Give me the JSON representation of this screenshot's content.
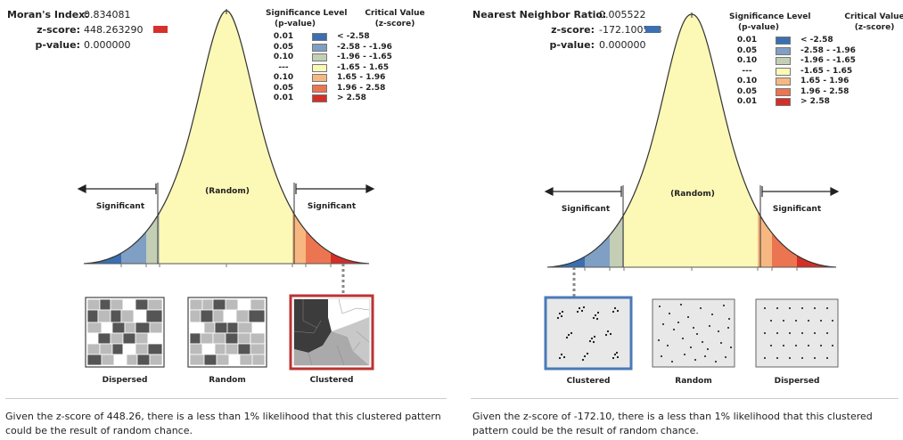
{
  "left": {
    "stats": {
      "index_label": "Moran's Index:",
      "index_value": "0.834081",
      "z_label": "z-score:",
      "z_value": "448.263290",
      "p_label": "p-value:",
      "p_value": "0.000000",
      "z_marker_color": "#d6312b"
    },
    "curve": {
      "random_label": "(Random)",
      "sig_left_label": "Significant",
      "sig_right_label": "Significant"
    },
    "thumbnails": [
      {
        "label": "Dispersed",
        "selected": false
      },
      {
        "label": "Random",
        "selected": false
      },
      {
        "label": "Clustered",
        "selected": true
      }
    ],
    "message": "Given the z-score of 448.26, there is a less than 1% likelihood that this clustered pattern could be the result of random chance."
  },
  "right": {
    "stats": {
      "index_label": "Nearest Neighbor Ratio:",
      "index_value": "0.005522",
      "z_label": "z-score:",
      "z_value": "-172.100518",
      "p_label": "p-value:",
      "p_value": "0.000000",
      "z_marker_color": "#3d6fb2"
    },
    "curve": {
      "random_label": "(Random)",
      "sig_left_label": "Significant",
      "sig_right_label": "Significant"
    },
    "thumbnails": [
      {
        "label": "Clustered",
        "selected": true
      },
      {
        "label": "Random",
        "selected": false
      },
      {
        "label": "Dispersed",
        "selected": false
      }
    ],
    "message": "Given the z-score of -172.10, there is a less than 1% likelihood that this clustered pattern could be the result of random chance."
  },
  "legend": {
    "sig_header_line1": "Significance Level",
    "sig_header_line2": "(p-value)",
    "crit_header_line1": "Critical Value",
    "crit_header_line2": "(z-score)",
    "rows": [
      {
        "level": "0.01",
        "critical": "< -2.58",
        "color": "#3a6fb1"
      },
      {
        "level": "0.05",
        "critical": "-2.58 - -1.96",
        "color": "#7f9fc4"
      },
      {
        "level": "0.10",
        "critical": "-1.96 - -1.65",
        "color": "#c4ceb5"
      },
      {
        "level": "---",
        "critical": "-1.65 - 1.65",
        "color": "#fcf8b6"
      },
      {
        "level": "0.10",
        "critical": "1.65 - 1.96",
        "color": "#f6b880"
      },
      {
        "level": "0.05",
        "critical": "1.96 - 2.58",
        "color": "#ec7551"
      },
      {
        "level": "0.01",
        "critical": "> 2.58",
        "color": "#d42e27"
      }
    ]
  }
}
